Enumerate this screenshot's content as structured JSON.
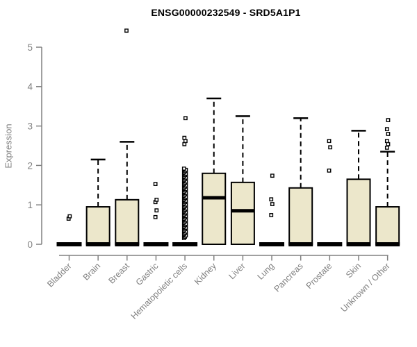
{
  "chart": {
    "title": "ENSG00000232549 - SRD5A1P1",
    "ylabel": "Expression"
  },
  "colors": {
    "box_fill": "#ECE7CB",
    "box_stroke": "#000000",
    "median": "#000000",
    "whisker": "#000000",
    "axis": "#808080",
    "tick_label": "#808080",
    "title": "#000000",
    "background": "#ffffff"
  },
  "chart_data": {
    "type": "boxplot",
    "title": "ENSG00000232549 - SRD5A1P1",
    "xlabel": "",
    "ylabel": "Expression",
    "ylim": [
      0,
      5
    ],
    "yticks": [
      0,
      1,
      2,
      3,
      4,
      5
    ],
    "grid": false,
    "legend": false,
    "categories": [
      "Bladder",
      "Brain",
      "Breast",
      "Gastric",
      "Hematopoietic cells",
      "Kidney",
      "Liver",
      "Lung",
      "Pancreas",
      "Prostate",
      "Skin",
      "Unknown / Other"
    ],
    "series": [
      {
        "name": "Bladder",
        "whisker_low": 0,
        "q1": 0,
        "median": 0,
        "q3": 0,
        "whisker_high": 0,
        "outliers": [
          0.65,
          0.71
        ]
      },
      {
        "name": "Brain",
        "whisker_low": 0,
        "q1": 0,
        "median": 0,
        "q3": 0.95,
        "whisker_high": 2.15,
        "outliers": []
      },
      {
        "name": "Breast",
        "whisker_low": 0,
        "q1": 0,
        "median": 0,
        "q3": 1.13,
        "whisker_high": 2.6,
        "outliers": [
          5.42
        ]
      },
      {
        "name": "Gastric",
        "whisker_low": 0,
        "q1": 0,
        "median": 0,
        "q3": 0,
        "whisker_high": 0,
        "outliers": [
          0.69,
          0.86,
          1.07,
          1.13,
          1.53
        ]
      },
      {
        "name": "Hematopoietic cells",
        "whisker_low": 0,
        "q1": 0,
        "median": 0,
        "q3": 0,
        "whisker_high": 0,
        "outliers": [
          2.54,
          2.62,
          2.7,
          3.2
        ],
        "outlier_strip": {
          "min": 0.16,
          "max": 1.92,
          "count": 55
        }
      },
      {
        "name": "Kidney",
        "whisker_low": 0,
        "q1": 0,
        "median": 1.18,
        "q3": 1.8,
        "whisker_high": 3.7,
        "outliers": []
      },
      {
        "name": "Liver",
        "whisker_low": 0,
        "q1": 0,
        "median": 0.85,
        "q3": 1.57,
        "whisker_high": 3.25,
        "outliers": []
      },
      {
        "name": "Lung",
        "whisker_low": 0,
        "q1": 0,
        "median": 0,
        "q3": 0,
        "whisker_high": 0,
        "outliers": [
          0.74,
          1.02,
          1.14,
          1.74
        ]
      },
      {
        "name": "Pancreas",
        "whisker_low": 0,
        "q1": 0,
        "median": 0,
        "q3": 1.43,
        "whisker_high": 3.2,
        "outliers": []
      },
      {
        "name": "Prostate",
        "whisker_low": 0,
        "q1": 0,
        "median": 0,
        "q3": 0,
        "whisker_high": 0,
        "outliers": [
          1.87,
          2.46,
          2.62
        ]
      },
      {
        "name": "Skin",
        "whisker_low": 0,
        "q1": 0,
        "median": 0,
        "q3": 1.65,
        "whisker_high": 2.88,
        "outliers": []
      },
      {
        "name": "Unknown / Other",
        "whisker_low": 0,
        "q1": 0,
        "median": 0,
        "q3": 0.95,
        "whisker_high": 2.35,
        "outliers": [
          2.45,
          2.54,
          2.62,
          2.8,
          2.92,
          3.15
        ]
      }
    ]
  }
}
